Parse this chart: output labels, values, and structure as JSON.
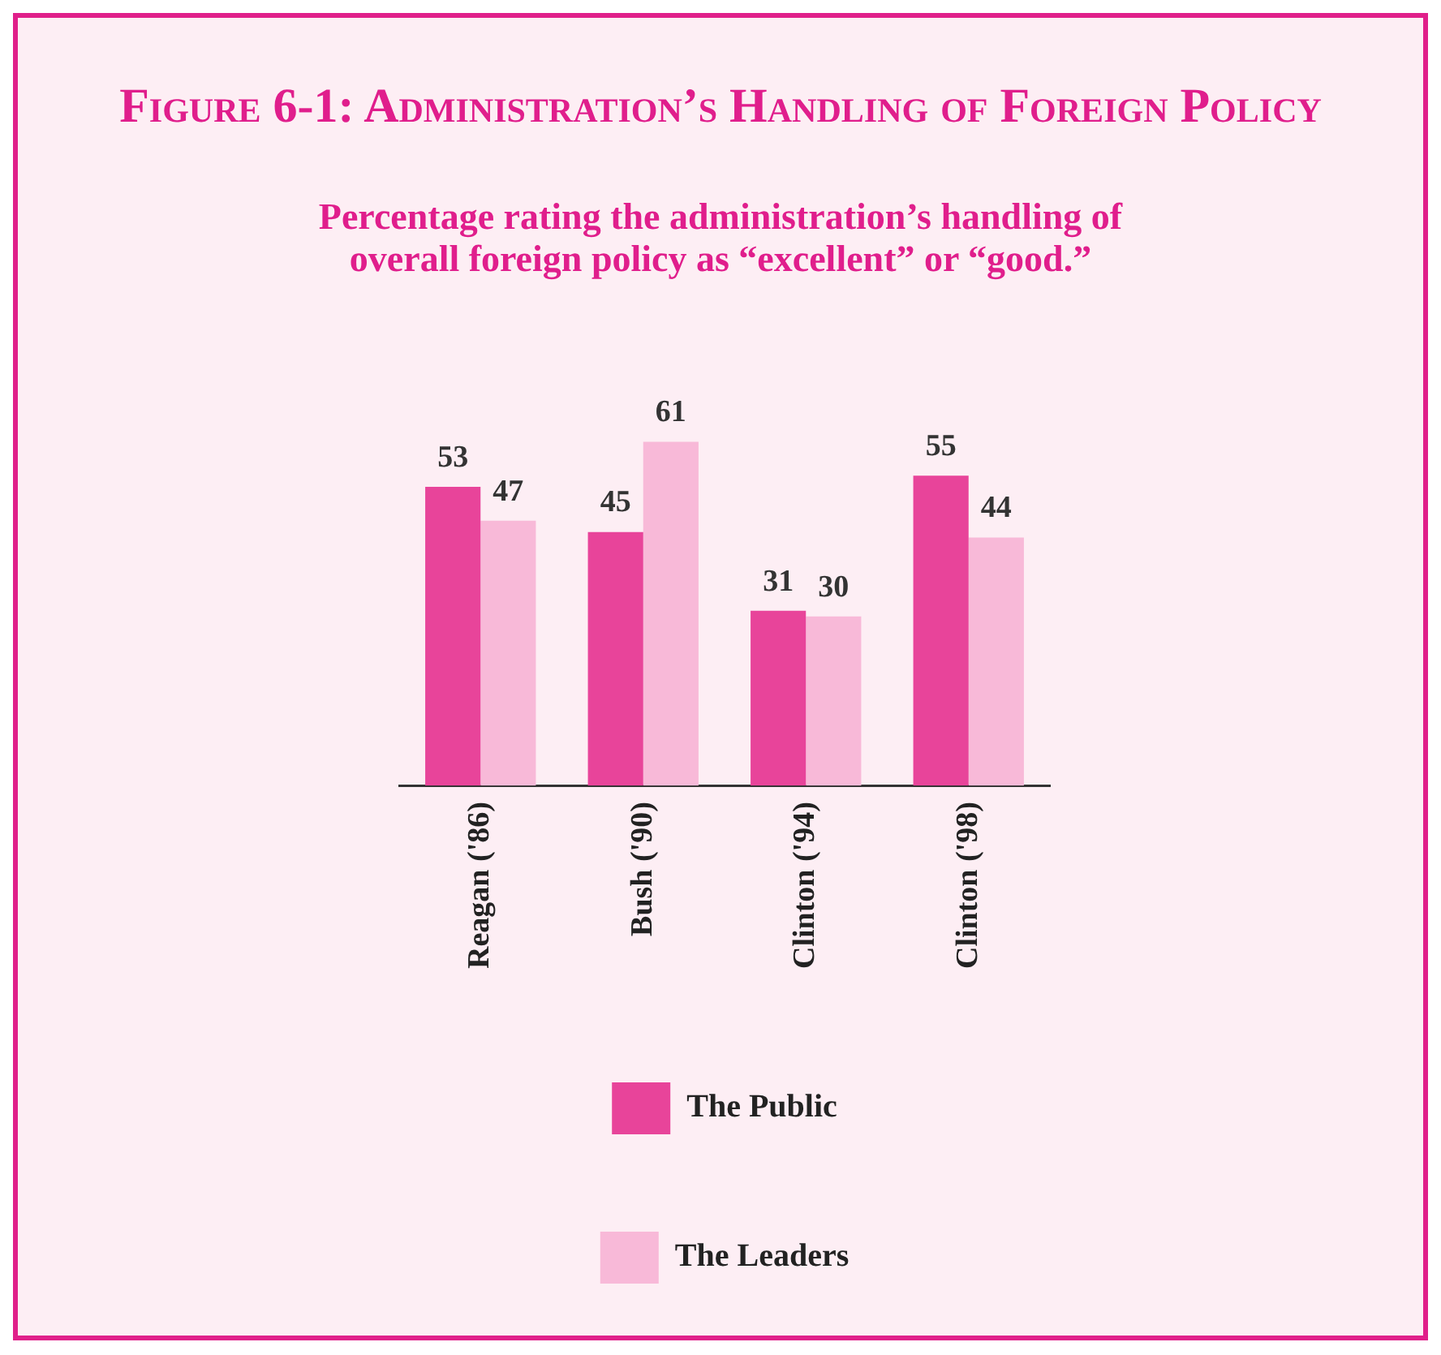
{
  "chart_data": {
    "type": "bar",
    "title": "Figure 6-1: Administration’s Handling of Foreign Policy",
    "subtitle": "Percentage rating the administration’s handling of overall foreign policy as “excellent” or “good.”",
    "categories": [
      "Reagan ('86)",
      "Bush ('90)",
      "Clinton ('94)",
      "Clinton ('98)"
    ],
    "series": [
      {
        "name": "The Public",
        "color": "#e8449a",
        "values": [
          53,
          45,
          31,
          55
        ]
      },
      {
        "name": "The Leaders",
        "color": "#f8b9d8",
        "values": [
          47,
          61,
          30,
          44
        ]
      }
    ],
    "data_labels": true,
    "legend": "bottom",
    "grid": false
  }
}
